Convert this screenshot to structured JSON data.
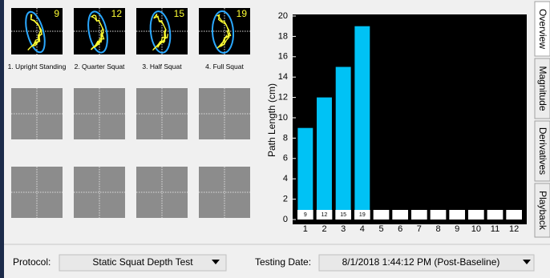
{
  "tabs": [
    "Overview",
    "Magnitude",
    "Derivatives",
    "Playback"
  ],
  "trials": [
    "1. Upright Standing",
    "2. Quarter Squat",
    "3. Half Squat",
    "4. Full Squat"
  ],
  "chart_data": {
    "type": "bar",
    "y_label": "Path Length (cm)",
    "categories": [
      1,
      2,
      3,
      4,
      5,
      6,
      7,
      8,
      9,
      10,
      11,
      12
    ],
    "values": [
      9,
      12,
      15,
      19,
      null,
      null,
      null,
      null,
      null,
      null,
      null,
      null
    ],
    "color": "#00c2f5",
    "ylim": [
      0,
      20
    ],
    "yticks": [
      0,
      2,
      4,
      6,
      8,
      10,
      12,
      14,
      16,
      18,
      20
    ]
  },
  "footer": {
    "protocol_label": "Protocol:",
    "protocol": "Static Squat Depth Test",
    "date_label": "Testing Date:",
    "date": "8/1/2018 1:44:12 PM (Post-Baseline)"
  }
}
